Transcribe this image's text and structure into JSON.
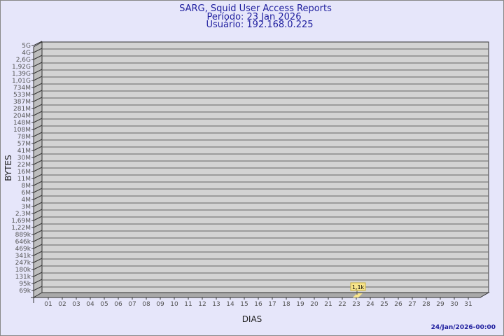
{
  "chart_data": {
    "type": "bar",
    "title": "SARG, Squid User Access Reports",
    "subtitle": [
      "Período: 23 Jan 2026",
      "Usuário: 192.168.0.225"
    ],
    "xlabel": "DIAS",
    "ylabel": "BYTES",
    "y_scale": "log",
    "y_ticks": [
      "5G",
      "4G",
      "2,6G",
      "1,92G",
      "1,39G",
      "1,01G",
      "734M",
      "533M",
      "387M",
      "281M",
      "204M",
      "148M",
      "108M",
      "78M",
      "57M",
      "41M",
      "30M",
      "22M",
      "16M",
      "11M",
      "8M",
      "6M",
      "4M",
      "3M",
      "2,3M",
      "1,69M",
      "1,22M",
      "889k",
      "646k",
      "469k",
      "341k",
      "247k",
      "180k",
      "131k",
      "95k",
      "69k"
    ],
    "categories": [
      "01",
      "02",
      "03",
      "04",
      "05",
      "06",
      "07",
      "08",
      "09",
      "10",
      "11",
      "12",
      "13",
      "14",
      "15",
      "16",
      "17",
      "18",
      "19",
      "20",
      "21",
      "22",
      "23",
      "24",
      "25",
      "26",
      "27",
      "28",
      "29",
      "30",
      "31"
    ],
    "values": {
      "23": 1100
    },
    "data_labels": {
      "23": "1,1k"
    },
    "grid": true,
    "colors": {
      "wall": "#d3d3d3",
      "bar": "#f8e58c",
      "title": "#1e1e9e"
    }
  },
  "footer": {
    "timestamp": "24/Jan/2026-00:00"
  }
}
